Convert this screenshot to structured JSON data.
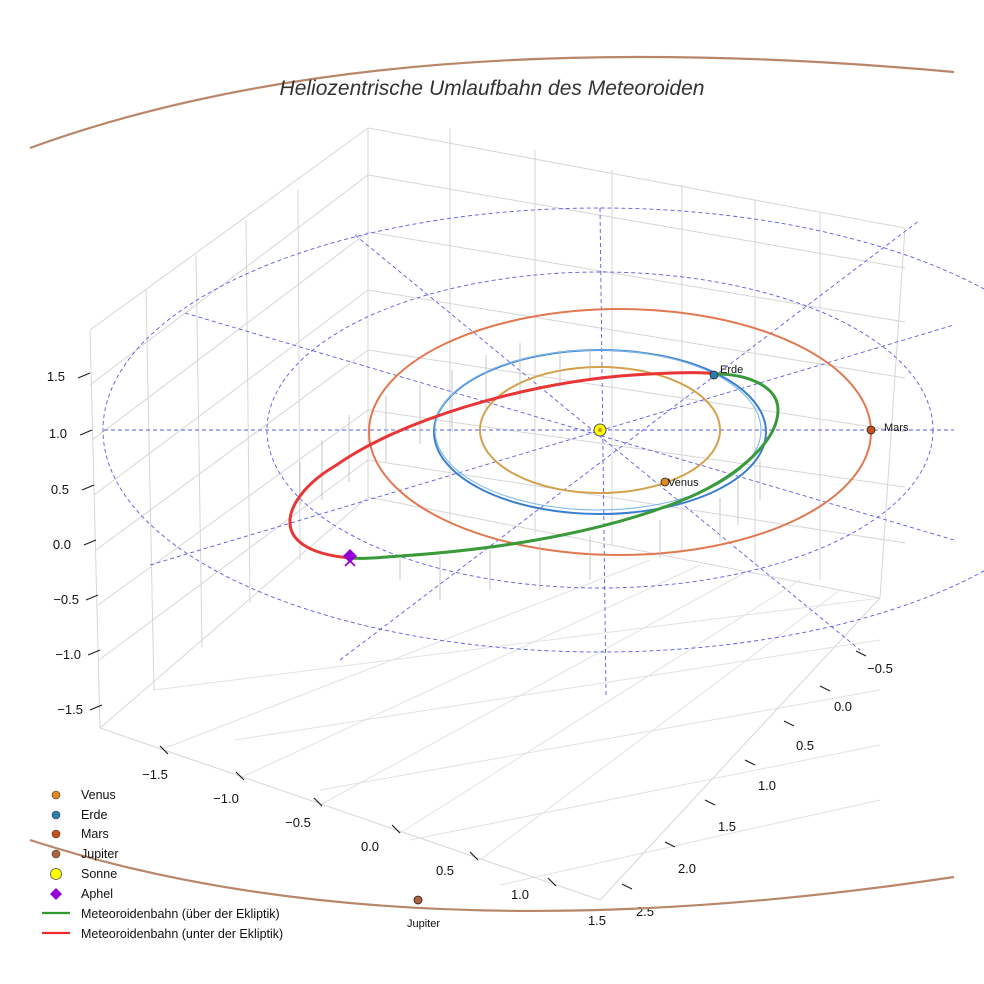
{
  "chart_data": {
    "type": "line",
    "projection": "3d",
    "title": "Heliozentrische Umlaufbahn des Meteoroiden",
    "axes": {
      "z_ticks": [
        "1.5",
        "1.0",
        "0.5",
        "0.0",
        "−0.5",
        "−1.0",
        "−1.5"
      ],
      "x_ticks": [
        "−1.5",
        "−1.0",
        "−0.5",
        "0.0",
        "0.5",
        "1.0",
        "1.5"
      ],
      "y_ticks": [
        "−0.5",
        "0.0",
        "0.5",
        "1.0",
        "1.5",
        "2.0",
        "2.5"
      ]
    },
    "orbits": [
      {
        "name": "Venus",
        "radius_au": 0.72,
        "color": "#d4a04a"
      },
      {
        "name": "Erde",
        "radius_au": 1.0,
        "color": "#3a7fd0"
      },
      {
        "name": "Mars",
        "radius_au": 1.52,
        "color": "#e07850"
      },
      {
        "name": "Jupiter",
        "radius_au": 5.2,
        "color": "#b8876a"
      }
    ],
    "reference_rings_au": [
      2.0,
      2.9
    ],
    "planets": [
      {
        "name": "Venus",
        "label": "Venus",
        "color": "#e08a20"
      },
      {
        "name": "Erde",
        "label": "Erde",
        "color": "#2a7fb0"
      },
      {
        "name": "Mars",
        "label": "Mars",
        "color": "#c8501e"
      },
      {
        "name": "Jupiter",
        "label": "Jupiter",
        "color": "#b0643a"
      }
    ],
    "sun": {
      "name": "Sonne",
      "x": 0,
      "y": 0,
      "z": 0,
      "color": "#ffff00"
    },
    "aphel": {
      "name": "Aphel",
      "color": "#9400d3"
    },
    "meteoroid": {
      "above_color": "#3a9a3a",
      "below_color": "#e83030"
    },
    "legend": [
      {
        "label": "Venus",
        "marker": "dot",
        "color": "#e08a20"
      },
      {
        "label": "Erde",
        "marker": "dot",
        "color": "#2a7fb0"
      },
      {
        "label": "Mars",
        "marker": "dot",
        "color": "#c8501e"
      },
      {
        "label": "Jupiter",
        "marker": "dot",
        "color": "#b0643a"
      },
      {
        "label": "Sonne",
        "marker": "sun",
        "color": "#ffff00"
      },
      {
        "label": "Aphel",
        "marker": "diamond",
        "color": "#9400d3"
      },
      {
        "label": "Meteoroidenbahn (über der Ekliptik)",
        "marker": "line",
        "color": "#2e9a2e"
      },
      {
        "label": "Meteoroidenbahn (unter der Ekliptik)",
        "marker": "line",
        "color": "#ee2a2a"
      }
    ]
  }
}
